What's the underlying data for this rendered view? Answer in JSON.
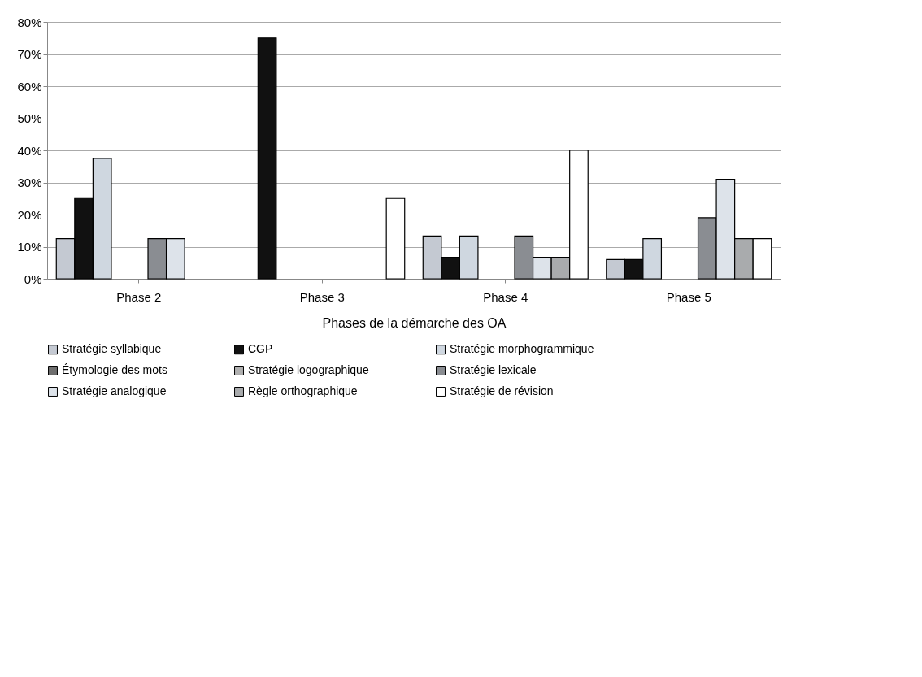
{
  "chart_data": {
    "type": "bar",
    "xlabel": "Phases de la démarche des OA",
    "categories": [
      "Phase 2",
      "Phase 3",
      "Phase 4",
      "Phase 5"
    ],
    "series": [
      {
        "name": "Stratégie syllabique",
        "color": "#c4c9d2",
        "values": [
          12.5,
          null,
          13.3,
          6
        ]
      },
      {
        "name": "CGP",
        "color": "#111111",
        "values": [
          25,
          75,
          6.7,
          6
        ]
      },
      {
        "name": "Stratégie morphogrammique",
        "color": "#cfd7e0",
        "values": [
          37.5,
          null,
          13.3,
          12.5
        ]
      },
      {
        "name": "Étymologie des mots",
        "color": "#6e6e6e",
        "values": [
          null,
          null,
          null,
          null
        ]
      },
      {
        "name": "Stratégie logographique",
        "color": "#b0b0b0",
        "values": [
          null,
          null,
          null,
          null
        ]
      },
      {
        "name": "Stratégie lexicale",
        "color": "#8a8d92",
        "values": [
          12.5,
          null,
          13.3,
          19
        ]
      },
      {
        "name": "Stratégie analogique",
        "color": "#dde3ea",
        "values": [
          12.5,
          null,
          6.7,
          31
        ]
      },
      {
        "name": "Règle orthographique",
        "color": "#a9abad",
        "values": [
          null,
          null,
          6.7,
          12.5
        ]
      },
      {
        "name": "Stratégie de révision",
        "color": "#ffffff",
        "values": [
          null,
          25,
          40,
          12.5
        ]
      }
    ],
    "ylim": [
      0,
      80
    ],
    "yticks": [
      {
        "value": 0,
        "label": "0%"
      },
      {
        "value": 10,
        "label": "10%"
      },
      {
        "value": 20,
        "label": "20%"
      },
      {
        "value": 30,
        "label": "30%"
      },
      {
        "value": 40,
        "label": "40%"
      },
      {
        "value": 50,
        "label": "50%"
      },
      {
        "value": 60,
        "label": "60%"
      },
      {
        "value": 70,
        "label": "70%"
      },
      {
        "value": 80,
        "label": "80%"
      }
    ],
    "grid": "y",
    "legend": "bottom"
  }
}
